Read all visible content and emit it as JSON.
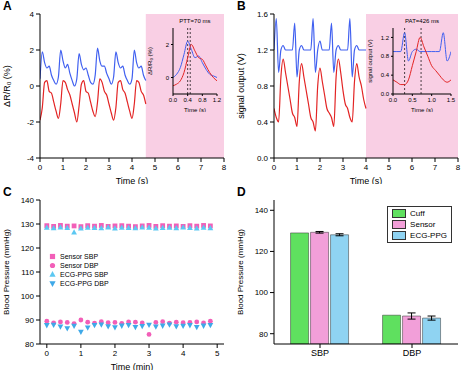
{
  "chart_data": [
    {
      "type": "line",
      "panel": "A",
      "x": [
        0,
        0.1,
        0.2,
        0.3,
        0.4,
        0.5,
        0.6,
        0.7,
        0.8,
        0.9,
        1,
        1.1,
        1.2,
        1.3,
        1.4,
        1.5,
        1.6,
        1.7,
        1.8,
        1.9,
        2,
        2.1,
        2.2,
        2.3,
        2.4,
        2.5,
        2.6,
        2.7,
        2.8,
        2.9,
        3,
        3.1,
        3.2,
        3.3,
        3.4,
        3.5,
        3.6,
        3.7,
        3.8,
        3.9,
        4,
        4.1,
        4.2,
        4.3,
        4.4,
        4.5,
        4.6
      ],
      "series": [
        {
          "color": "#4060f0",
          "values": [
            0.4,
            1.9,
            1.3,
            1.0,
            1.1,
            0.6,
            0.3,
            0.1,
            0.5,
            2.0,
            1.4,
            1.0,
            1.2,
            0.7,
            0.3,
            0.0,
            0.4,
            1.8,
            1.2,
            0.9,
            1.0,
            0.6,
            0.2,
            0.1,
            0.6,
            2.1,
            1.4,
            1.1,
            1.1,
            0.7,
            0.4,
            0.1,
            0.5,
            1.9,
            1.3,
            1.0,
            1.1,
            0.6,
            0.3,
            0.1,
            0.4,
            2.0,
            1.3,
            1.0,
            1.1,
            0.6,
            0.3
          ]
        },
        {
          "color": "#e32424",
          "values": [
            -1.9,
            -1.2,
            0.2,
            0.3,
            -0.3,
            -0.4,
            -0.9,
            -1.4,
            -1.8,
            -1.0,
            0.3,
            0.2,
            -0.2,
            -0.5,
            -1.0,
            -1.5,
            -2.0,
            -1.1,
            0.1,
            0.3,
            -0.3,
            -0.4,
            -0.9,
            -1.4,
            -1.7,
            -0.9,
            0.4,
            0.2,
            -0.3,
            -0.5,
            -1.0,
            -1.5,
            -1.9,
            -1.2,
            0.2,
            0.3,
            -0.2,
            -0.4,
            -0.9,
            -1.4,
            -1.8,
            -1.0,
            0.3,
            0.2,
            -0.3,
            -0.5,
            -1.0
          ]
        }
      ],
      "xlim": [
        0,
        8
      ],
      "xticks": [
        0,
        1,
        2,
        3,
        4,
        5,
        6,
        7,
        8
      ],
      "ylim": [
        -4,
        4
      ],
      "yticks": [
        -4,
        -2,
        0,
        2,
        4
      ],
      "x_label": "Time (s)",
      "y_label": "ΔR/R₀ (%)",
      "highlight": [
        4.6,
        8
      ],
      "inset": {
        "type": "line",
        "x": [
          0,
          0.1,
          0.2,
          0.3,
          0.4,
          0.5,
          0.6,
          0.7,
          0.8,
          0.9,
          1,
          1.1,
          1.2
        ],
        "series": [
          {
            "color": "#4060f0",
            "values": [
              0.0,
              0.2,
              0.6,
              1.4,
              2.2,
              1.7,
              1.2,
              1.3,
              0.9,
              0.5,
              0.2,
              0.1,
              0.0
            ]
          },
          {
            "color": "#e32424",
            "values": [
              -0.5,
              -0.4,
              -0.2,
              0.3,
              1.2,
              2.0,
              1.6,
              1.2,
              1.1,
              0.7,
              0.3,
              0.0,
              -0.2
            ]
          }
        ],
        "xlim": [
          0,
          1.2
        ],
        "xticks": [
          {
            "value": 0,
            "label": "0.0"
          },
          {
            "value": 0.4,
            "label": "0.4"
          },
          {
            "value": 0.8,
            "label": "0.8"
          },
          {
            "value": 1.2,
            "label": "1.2"
          }
        ],
        "ylim": [
          -1,
          3
        ],
        "yticks": [
          0,
          2
        ],
        "x_label": "Time (s)",
        "y_label": "ΔR/R₀ (%)",
        "annotation": "PTT=70 ms",
        "dashed_lines": [
          0.4,
          0.47
        ]
      }
    },
    {
      "type": "line",
      "panel": "B",
      "x": [
        0,
        0.1,
        0.2,
        0.3,
        0.4,
        0.5,
        0.6,
        0.7,
        0.8,
        0.9,
        1,
        1.1,
        1.2,
        1.3,
        1.4,
        1.5,
        1.6,
        1.7,
        1.8,
        1.9,
        2,
        2.1,
        2.2,
        2.3,
        2.4,
        2.5,
        2.6,
        2.7,
        2.8,
        2.9,
        3,
        3.1,
        3.2,
        3.3,
        3.4,
        3.5,
        3.6,
        3.7,
        3.8,
        3.9,
        4
      ],
      "series": [
        {
          "color": "#4060f0",
          "values": [
            1.2,
            1.55,
            0.95,
            1.2,
            1.25,
            1.2,
            1.2,
            1.2,
            1.2,
            1.5,
            0.9,
            1.2,
            1.25,
            1.2,
            1.2,
            1.2,
            1.2,
            1.55,
            0.95,
            1.2,
            1.3,
            1.2,
            1.2,
            1.2,
            1.2,
            1.5,
            0.95,
            1.2,
            1.25,
            1.2,
            1.2,
            1.2,
            1.2,
            1.55,
            0.9,
            1.2,
            1.25,
            1.2,
            1.2,
            1.2,
            1.2
          ]
        },
        {
          "color": "#e32424",
          "values": [
            0.55,
            0.45,
            0.4,
            0.9,
            1.1,
            0.95,
            0.8,
            0.65,
            0.5,
            0.45,
            0.35,
            0.85,
            1.05,
            0.9,
            0.75,
            0.6,
            0.45,
            0.4,
            0.3,
            0.8,
            1.0,
            0.85,
            0.7,
            0.55,
            0.5,
            0.45,
            0.35,
            0.9,
            1.1,
            0.95,
            0.75,
            0.6,
            0.55,
            0.45,
            0.4,
            0.85,
            1.05,
            0.9,
            0.8,
            0.65,
            0.55
          ]
        }
      ],
      "xlim": [
        0,
        8
      ],
      "xticks": [
        0,
        1,
        2,
        3,
        4,
        5,
        6,
        7,
        8
      ],
      "ylim": [
        0,
        1.6
      ],
      "yticks": [
        {
          "value": 0,
          "label": "0.0"
        },
        {
          "value": 0.4,
          "label": "0.4"
        },
        {
          "value": 0.8,
          "label": "0.8"
        },
        {
          "value": 1.2,
          "label": "1.2"
        },
        {
          "value": 1.6,
          "label": "1.6"
        }
      ],
      "x_label": "Time (s)",
      "y_label": "signal output (V)",
      "highlight": [
        4,
        8
      ],
      "inset": {
        "type": "line",
        "x": [
          0,
          0.1,
          0.2,
          0.3,
          0.4,
          0.5,
          0.6,
          0.7,
          0.8,
          0.9,
          1,
          1.1,
          1.2,
          1.3,
          1.4,
          1.5
        ],
        "series": [
          {
            "color": "#4060f0",
            "values": [
              0.9,
              0.9,
              0.9,
              1.3,
              0.7,
              0.9,
              0.95,
              0.9,
              0.9,
              0.9,
              0.9,
              0.9,
              0.9,
              1.3,
              0.7,
              0.9
            ]
          },
          {
            "color": "#e32424",
            "values": [
              0.3,
              0.25,
              0.2,
              0.2,
              0.3,
              0.6,
              0.9,
              1.2,
              1.0,
              0.8,
              0.6,
              0.5,
              0.4,
              0.3,
              0.25,
              0.3
            ]
          }
        ],
        "xlim": [
          0,
          1.5
        ],
        "xticks": [
          {
            "value": 0,
            "label": "0.0"
          },
          {
            "value": 0.5,
            "label": "0.5"
          },
          {
            "value": 1,
            "label": "1.0"
          },
          {
            "value": 1.5,
            "label": "1.5"
          }
        ],
        "ylim": [
          0,
          1.4
        ],
        "yticks": [
          {
            "value": 0,
            "label": "0.0"
          },
          {
            "value": 0.4,
            "label": "0.4"
          },
          {
            "value": 0.8,
            "label": "0.8"
          },
          {
            "value": 1.2,
            "label": "1.2"
          }
        ],
        "x_label": "Time (s)",
        "y_label": "signal output (V)",
        "annotation": "PAT=426 ms",
        "dashed_lines": [
          0.3,
          0.726
        ]
      }
    },
    {
      "type": "scatter",
      "panel": "C",
      "x": [
        0,
        0.2,
        0.4,
        0.6,
        0.8,
        1,
        1.2,
        1.4,
        1.6,
        1.8,
        2,
        2.2,
        2.4,
        2.6,
        2.8,
        3,
        3.2,
        3.4,
        3.6,
        3.8,
        4,
        4.2,
        4.4,
        4.6,
        4.8
      ],
      "series": [
        {
          "name": "Sensor SBP",
          "color": "#f25fb8",
          "marker": "square",
          "values": [
            129.3,
            129.0,
            129.4,
            129.1,
            129.2,
            128.9,
            129.3,
            129.1,
            129.4,
            129.0,
            129.2,
            129.3,
            129.1,
            128.9,
            129.2,
            129.4,
            129.0,
            129.3,
            129.1,
            129.2,
            129.0,
            129.3,
            129.1,
            129.4,
            129.2
          ]
        },
        {
          "name": "Sensor DBP",
          "color": "#f25fb8",
          "marker": "circle",
          "values": [
            89.5,
            88.8,
            89.2,
            89.0,
            88.5,
            90.0,
            89.1,
            88.7,
            89.3,
            88.9,
            89.0,
            88.6,
            89.2,
            89.1,
            88.8,
            84.0,
            89.0,
            89.3,
            88.7,
            89.1,
            88.9,
            89.0,
            89.2,
            88.8,
            89.5
          ]
        },
        {
          "name": "ECG-PPG SBP",
          "color": "#5cc8f2",
          "marker": "triangle",
          "values": [
            128.5,
            128.3,
            128.6,
            128.4,
            126.5,
            128.2,
            128.5,
            128.4,
            128.3,
            128.6,
            128.2,
            128.5,
            128.4,
            128.3,
            128.6,
            128.5,
            128.2,
            128.4,
            128.5,
            128.3,
            128.6,
            128.4,
            128.2,
            128.5,
            128.3
          ]
        },
        {
          "name": "ECG-PPG DBP",
          "color": "#3fa9e8",
          "marker": "triangle-down",
          "values": [
            87.8,
            88.0,
            87.2,
            86.5,
            87.5,
            85.0,
            86.8,
            87.9,
            88.1,
            87.3,
            86.9,
            87.6,
            87.9,
            87.0,
            87.4,
            88.0,
            87.2,
            87.6,
            88.1,
            87.3,
            87.5,
            87.8,
            87.0,
            87.6,
            87.9
          ]
        }
      ],
      "xlim": [
        -0.2,
        5.2
      ],
      "xticks": [
        0,
        1,
        2,
        3,
        4,
        5
      ],
      "ylim": [
        80,
        140
      ],
      "yticks": [
        80,
        90,
        100,
        110,
        120,
        130,
        140
      ],
      "x_label": "Time (min)",
      "y_label": "Blood Pressure (mmHg)",
      "legend": "center left"
    },
    {
      "type": "bar",
      "panel": "D",
      "categories": [
        "SBP",
        "DBP"
      ],
      "series": [
        {
          "name": "Cuff",
          "color": "#5fe05f",
          "values": [
            129,
            89
          ]
        },
        {
          "name": "Sensor",
          "color": "#f29fd9",
          "values": [
            129.3,
            88.6
          ],
          "errors": [
            0.4,
            1.5
          ]
        },
        {
          "name": "ECG-PPG",
          "color": "#8fd3f2",
          "values": [
            128.1,
            87.6
          ],
          "errors": [
            0.5,
            1.0
          ]
        }
      ],
      "ylim": [
        75,
        145
      ],
      "yticks": [
        80,
        100,
        120,
        140
      ],
      "y_label": "Blood Pressure (mmHg)",
      "legend": "upper right"
    }
  ]
}
